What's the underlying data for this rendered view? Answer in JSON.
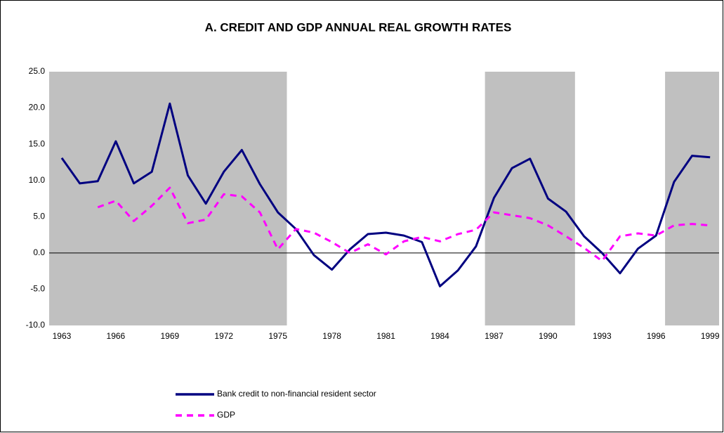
{
  "chart_data": {
    "type": "line",
    "title": "A. CREDIT AND GDP ANNUAL REAL GROWTH RATES",
    "x": [
      1963,
      1964,
      1965,
      1966,
      1967,
      1968,
      1969,
      1970,
      1971,
      1972,
      1973,
      1974,
      1975,
      1976,
      1977,
      1978,
      1979,
      1980,
      1981,
      1982,
      1983,
      1984,
      1985,
      1986,
      1987,
      1988,
      1989,
      1990,
      1991,
      1992,
      1993,
      1994,
      1995,
      1996,
      1997,
      1998,
      1999
    ],
    "series": [
      {
        "name": "Bank credit to non-financial resident sector",
        "color": "#000080",
        "dashed": false,
        "values": [
          13.1,
          9.6,
          9.9,
          15.4,
          9.6,
          11.2,
          20.6,
          10.7,
          6.8,
          11.2,
          14.2,
          9.5,
          5.6,
          3.3,
          -0.3,
          -2.3,
          0.5,
          2.6,
          2.8,
          2.4,
          1.5,
          -4.6,
          -2.4,
          0.9,
          7.6,
          11.7,
          13.0,
          7.5,
          5.7,
          2.3,
          0.0,
          -2.8,
          0.6,
          2.4,
          9.8,
          13.4,
          13.2
        ]
      },
      {
        "name": "GDP",
        "color": "#ff00ff",
        "dashed": true,
        "values": [
          null,
          null,
          6.3,
          7.2,
          4.4,
          6.5,
          9.0,
          4.1,
          4.6,
          8.1,
          7.8,
          5.6,
          0.5,
          3.3,
          2.8,
          1.5,
          0.0,
          1.2,
          -0.2,
          1.6,
          2.2,
          1.6,
          2.6,
          3.2,
          5.6,
          5.2,
          4.8,
          3.8,
          2.3,
          0.7,
          -1.1,
          2.3,
          2.7,
          2.4,
          3.8,
          4.0,
          3.8
        ]
      }
    ],
    "shaded_periods": [
      [
        1962.3,
        1975.5
      ],
      [
        1986.5,
        1991.5
      ],
      [
        1996.5,
        1999.5
      ]
    ],
    "shade_color": "#c0c0c0",
    "xlim": [
      1962.3,
      1999.5
    ],
    "xticks": [
      1963,
      1966,
      1969,
      1972,
      1975,
      1978,
      1981,
      1984,
      1987,
      1990,
      1993,
      1996,
      1999
    ],
    "ylim": [
      -10,
      25
    ],
    "yticks": [
      {
        "value": -10,
        "label": "-10.0"
      },
      {
        "value": -5,
        "label": "-5.0"
      },
      {
        "value": 0,
        "label": "0.0"
      },
      {
        "value": 5,
        "label": "5.0"
      },
      {
        "value": 10,
        "label": "10.0"
      },
      {
        "value": 15,
        "label": "15.0"
      },
      {
        "value": 20,
        "label": "20.0"
      },
      {
        "value": 25,
        "label": "25.0"
      }
    ],
    "grid": false,
    "legend": "bottom"
  }
}
